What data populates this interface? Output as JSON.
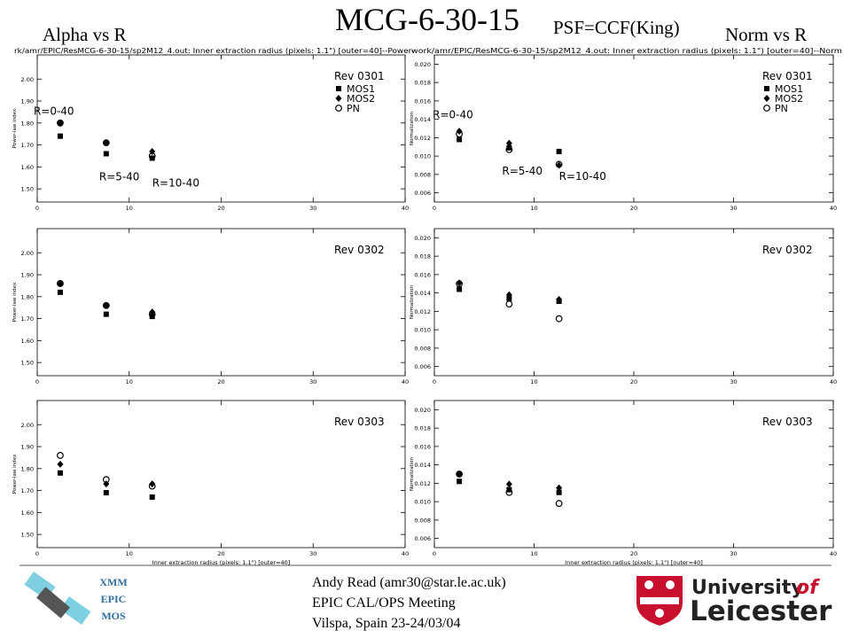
{
  "title": "MCG-6-30-15",
  "subtitle": "PSF=CCF(King)",
  "left_label": "Alpha vs R",
  "right_label": "Norm vs R",
  "footer": {
    "mission": [
      "XMM",
      "EPIC",
      "MOS"
    ],
    "author": [
      "Andy Read (amr30@star.le.ac.uk)",
      "EPIC CAL/OPS Meeting",
      "Vilspa, Spain 23-24/03/04"
    ],
    "university": [
      "University",
      "of",
      "Leicester"
    ]
  },
  "chart_data": [
    {
      "type": "scatter",
      "header": "rk/amr/EPIC/ResMCG-6-30-15/sp2M12_4.out: Inner extraction radius (pixels: 1.1\") [outer=40]--Power-",
      "title": "Rev 0301",
      "y_label": "Power-law index",
      "legend": "upper right",
      "annotations": [
        "R=0-40",
        "R=5-40",
        "R=10-40"
      ],
      "x": [
        2.5,
        7.5,
        12.5
      ],
      "xlim": [
        0,
        40
      ],
      "xticks": [
        0,
        10,
        20,
        30,
        40
      ],
      "ylim": [
        1.44,
        2.11
      ],
      "yticks": [
        {
          "value": 1.5,
          "label": "1.50"
        },
        {
          "value": 1.6,
          "label": "1.60"
        },
        {
          "value": 1.7,
          "label": "1.70"
        },
        {
          "value": 1.8,
          "label": "1.80"
        },
        {
          "value": 1.9,
          "label": "1.90"
        },
        {
          "value": 2.0,
          "label": "2.00"
        }
      ],
      "series": [
        {
          "name": "MOS1",
          "marker": "square",
          "color": "#000000",
          "values": [
            1.74,
            1.66,
            1.64
          ]
        },
        {
          "name": "MOS2",
          "marker": "diamond",
          "color": "#000000",
          "values": [
            1.8,
            1.71,
            1.67
          ]
        },
        {
          "name": "PN",
          "marker": "circle",
          "color": "#000000",
          "values": [
            1.8,
            1.71,
            1.65
          ]
        }
      ]
    },
    {
      "type": "scatter",
      "header": "work/amr/EPIC/ResMCG-6-30-15/sp2M12_4.out: Inner extraction radius (pixels: 1.1\") [outer=40]--Norm",
      "title": "Rev 0301",
      "y_label": "Normalization",
      "legend": "upper right",
      "annotations": [
        "R=0-40",
        "R=5-40",
        "R=10-40"
      ],
      "x": [
        2.5,
        7.5,
        12.5
      ],
      "xlim": [
        0,
        40
      ],
      "xticks": [
        0,
        10,
        20,
        30,
        40
      ],
      "ylim": [
        0.005,
        0.021
      ],
      "yticks": [
        {
          "value": 0.006,
          "label": "0.006"
        },
        {
          "value": 0.008,
          "label": "0.008"
        },
        {
          "value": 0.01,
          "label": "0.010"
        },
        {
          "value": 0.012,
          "label": "0.012"
        },
        {
          "value": 0.014,
          "label": "0.014"
        },
        {
          "value": 0.016,
          "label": "0.016"
        },
        {
          "value": 0.018,
          "label": "0.018"
        },
        {
          "value": 0.02,
          "label": "0.020"
        }
      ],
      "series": [
        {
          "name": "MOS1",
          "marker": "square",
          "color": "#000000",
          "values": [
            0.0118,
            0.0109,
            0.0105
          ]
        },
        {
          "name": "MOS2",
          "marker": "diamond",
          "color": "#000000",
          "values": [
            0.0127,
            0.0114,
            0.009
          ]
        },
        {
          "name": "PN",
          "marker": "circle",
          "color": "#000000",
          "values": [
            0.0124,
            0.0107,
            0.0091
          ]
        }
      ]
    },
    {
      "type": "scatter",
      "title": "Rev 0302",
      "y_label": "Power-law index",
      "x": [
        2.5,
        7.5,
        12.5
      ],
      "xlim": [
        0,
        40
      ],
      "xticks": [
        0,
        10,
        20,
        30,
        40
      ],
      "ylim": [
        1.44,
        2.11
      ],
      "yticks": [
        {
          "value": 1.5,
          "label": "1.50"
        },
        {
          "value": 1.6,
          "label": "1.60"
        },
        {
          "value": 1.7,
          "label": "1.70"
        },
        {
          "value": 1.8,
          "label": "1.80"
        },
        {
          "value": 1.9,
          "label": "1.90"
        },
        {
          "value": 2.0,
          "label": "2.00"
        }
      ],
      "series": [
        {
          "name": "MOS1",
          "marker": "square",
          "color": "#000000",
          "values": [
            1.82,
            1.72,
            1.71
          ]
        },
        {
          "name": "MOS2",
          "marker": "diamond",
          "color": "#000000",
          "values": [
            1.86,
            1.76,
            1.73
          ]
        },
        {
          "name": "PN",
          "marker": "circle",
          "color": "#000000",
          "values": [
            1.86,
            1.76,
            1.72
          ]
        }
      ]
    },
    {
      "type": "scatter",
      "title": "Rev 0302",
      "y_label": "Normalization",
      "x": [
        2.5,
        7.5,
        12.5
      ],
      "xlim": [
        0,
        40
      ],
      "xticks": [
        0,
        10,
        20,
        30,
        40
      ],
      "ylim": [
        0.005,
        0.021
      ],
      "yticks": [
        {
          "value": 0.006,
          "label": "0.006"
        },
        {
          "value": 0.008,
          "label": "0.008"
        },
        {
          "value": 0.01,
          "label": "0.010"
        },
        {
          "value": 0.012,
          "label": "0.012"
        },
        {
          "value": 0.014,
          "label": "0.014"
        },
        {
          "value": 0.016,
          "label": "0.016"
        },
        {
          "value": 0.018,
          "label": "0.018"
        },
        {
          "value": 0.02,
          "label": "0.020"
        }
      ],
      "series": [
        {
          "name": "MOS1",
          "marker": "square",
          "color": "#000000",
          "values": [
            0.0144,
            0.0134,
            0.0131
          ]
        },
        {
          "name": "MOS2",
          "marker": "diamond",
          "color": "#000000",
          "values": [
            0.0151,
            0.0138,
            0.0133
          ]
        },
        {
          "name": "PN",
          "marker": "circle",
          "color": "#000000",
          "values": [
            0.015,
            0.0128,
            0.0112
          ]
        }
      ]
    },
    {
      "type": "scatter",
      "title": "Rev 0303",
      "y_label": "Power-law index",
      "x_label": "Inner extraction radius (pixels: 1.1\") [outer=40]",
      "x": [
        2.5,
        7.5,
        12.5
      ],
      "xlim": [
        0,
        40
      ],
      "xticks": [
        0,
        10,
        20,
        30,
        40
      ],
      "ylim": [
        1.44,
        2.11
      ],
      "yticks": [
        {
          "value": 1.5,
          "label": "1.50"
        },
        {
          "value": 1.6,
          "label": "1.60"
        },
        {
          "value": 1.7,
          "label": "1.70"
        },
        {
          "value": 1.8,
          "label": "1.80"
        },
        {
          "value": 1.9,
          "label": "1.90"
        },
        {
          "value": 2.0,
          "label": "2.00"
        }
      ],
      "series": [
        {
          "name": "MOS1",
          "marker": "square",
          "color": "#000000",
          "values": [
            1.78,
            1.69,
            1.67
          ]
        },
        {
          "name": "MOS2",
          "marker": "diamond",
          "color": "#000000",
          "values": [
            1.82,
            1.73,
            1.73
          ]
        },
        {
          "name": "PN",
          "marker": "circle",
          "color": "#000000",
          "values": [
            1.86,
            1.75,
            1.72
          ]
        }
      ]
    },
    {
      "type": "scatter",
      "title": "Rev 0303",
      "y_label": "Normalization",
      "x_label": "Inner extraction radius (pixels: 1.1\") [outer=40]",
      "x": [
        2.5,
        7.5,
        12.5
      ],
      "xlim": [
        0,
        40
      ],
      "xticks": [
        0,
        10,
        20,
        30,
        40
      ],
      "ylim": [
        0.005,
        0.021
      ],
      "yticks": [
        {
          "value": 0.006,
          "label": "0.006"
        },
        {
          "value": 0.008,
          "label": "0.008"
        },
        {
          "value": 0.01,
          "label": "0.010"
        },
        {
          "value": 0.012,
          "label": "0.012"
        },
        {
          "value": 0.014,
          "label": "0.014"
        },
        {
          "value": 0.016,
          "label": "0.016"
        },
        {
          "value": 0.018,
          "label": "0.018"
        },
        {
          "value": 0.02,
          "label": "0.020"
        }
      ],
      "series": [
        {
          "name": "MOS1",
          "marker": "square",
          "color": "#000000",
          "values": [
            0.0122,
            0.0113,
            0.011
          ]
        },
        {
          "name": "MOS2",
          "marker": "diamond",
          "color": "#000000",
          "values": [
            0.013,
            0.0119,
            0.0115
          ]
        },
        {
          "name": "PN",
          "marker": "circle",
          "color": "#000000",
          "values": [
            0.013,
            0.011,
            0.0098
          ]
        }
      ]
    }
  ]
}
